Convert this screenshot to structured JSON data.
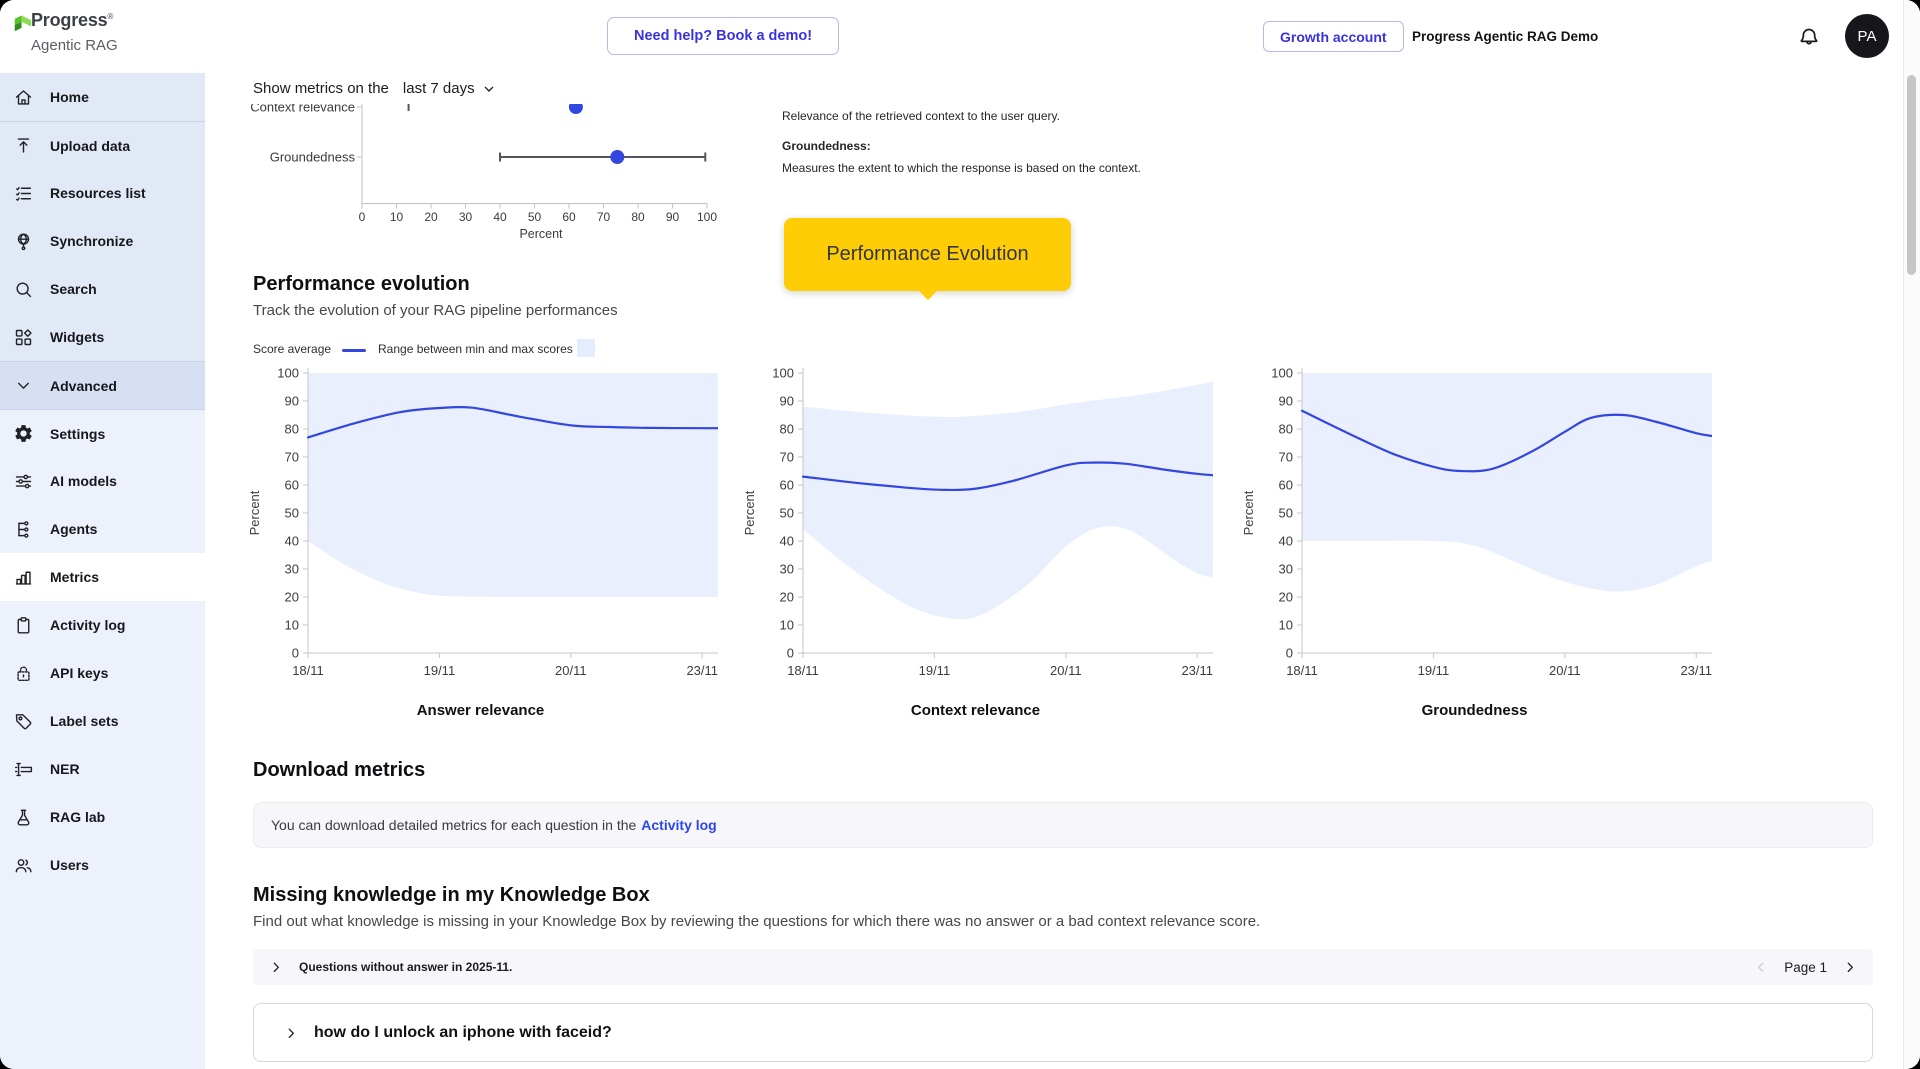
{
  "header": {
    "brand": "Progress",
    "brand_mark": "®",
    "product": "Agentic RAG",
    "help_button": "Need help? Book a demo!",
    "account_button": "Growth account",
    "account_label": "Progress Agentic RAG Demo",
    "avatar_initials": "PA"
  },
  "sidebar": {
    "items": [
      {
        "label": "Home",
        "icon": "home-icon",
        "group": "top"
      },
      {
        "label": "Upload data",
        "icon": "upload-icon",
        "group": "top",
        "divider_top": true
      },
      {
        "label": "Resources list",
        "icon": "list-icon",
        "group": "top"
      },
      {
        "label": "Synchronize",
        "icon": "globe-icon",
        "group": "top"
      },
      {
        "label": "Search",
        "icon": "search-icon",
        "group": "top"
      },
      {
        "label": "Widgets",
        "icon": "widgets-icon",
        "group": "top"
      },
      {
        "label": "Advanced",
        "icon": "chevron-down-icon",
        "group": "advanced",
        "divider_top": true
      },
      {
        "label": "Settings",
        "icon": "gear-icon",
        "group": "sub",
        "divider_top": true
      },
      {
        "label": "AI models",
        "icon": "sliders-icon",
        "group": "sub"
      },
      {
        "label": "Agents",
        "icon": "agents-icon",
        "group": "sub"
      },
      {
        "label": "Metrics",
        "icon": "metrics-icon",
        "group": "sub",
        "selected": true
      },
      {
        "label": "Activity log",
        "icon": "clipboard-icon",
        "group": "sub"
      },
      {
        "label": "API keys",
        "icon": "lock-dotted-icon",
        "group": "sub"
      },
      {
        "label": "Label sets",
        "icon": "tag-icon",
        "group": "sub"
      },
      {
        "label": "NER",
        "icon": "ner-icon",
        "group": "sub"
      },
      {
        "label": "RAG lab",
        "icon": "flask-icon",
        "group": "sub"
      },
      {
        "label": "Users",
        "icon": "users-icon",
        "group": "sub"
      }
    ]
  },
  "controls": {
    "prefix": "Show metrics on the",
    "range": "last 7 days"
  },
  "descriptions": {
    "context_text": "Relevance of the retrieved context to the user query.",
    "groundedness_label": "Groundedness:",
    "groundedness_text": "Measures the extent to which the response is based on the context."
  },
  "tooltip": {
    "text": "Performance Evolution"
  },
  "performance": {
    "title": "Performance evolution",
    "subtitle": "Track the evolution of your RAG pipeline performances",
    "legend": {
      "avg": "Score average",
      "range": "Range between min and max scores"
    }
  },
  "chart_data": [
    {
      "type": "scatter",
      "name": "metrics-overview-dot-plot",
      "xlabel": "Percent",
      "xlim": [
        0,
        100
      ],
      "x_ticks": [
        0,
        10,
        20,
        30,
        40,
        50,
        60,
        70,
        80,
        90,
        100
      ],
      "rows": [
        {
          "label": "Context relevance",
          "average": 62,
          "min": 13.5
        },
        {
          "label": "Groundedness",
          "average": 74,
          "min": 40,
          "max": 99.5
        }
      ]
    },
    {
      "type": "area",
      "title": "Answer relevance",
      "ylabel": "Percent",
      "ylim": [
        0,
        100
      ],
      "x_tick_labels": [
        "18/11",
        "19/11",
        "20/11",
        "23/11"
      ],
      "x_tick_pos": [
        0,
        1,
        2,
        3
      ],
      "x_max": 3.12,
      "average": [
        [
          0,
          77
        ],
        [
          0.35,
          82
        ],
        [
          0.7,
          86
        ],
        [
          1,
          87.5
        ],
        [
          1.25,
          87.6
        ],
        [
          1.6,
          84.5
        ],
        [
          2,
          81.3
        ],
        [
          2.3,
          80.7
        ],
        [
          2.6,
          80.4
        ],
        [
          3,
          80.3
        ],
        [
          3.12,
          80.3
        ]
      ],
      "max": [
        [
          0,
          100
        ],
        [
          3.12,
          100
        ]
      ],
      "min": [
        [
          0,
          40
        ],
        [
          0.3,
          31
        ],
        [
          0.6,
          24.5
        ],
        [
          0.9,
          21
        ],
        [
          1.15,
          20.2
        ],
        [
          1.5,
          20
        ],
        [
          2,
          20
        ],
        [
          2.5,
          20
        ],
        [
          3,
          20
        ],
        [
          3.12,
          20
        ]
      ]
    },
    {
      "type": "area",
      "title": "Context relevance",
      "ylabel": "Percent",
      "ylim": [
        0,
        100
      ],
      "x_tick_labels": [
        "18/11",
        "19/11",
        "20/11",
        "23/11"
      ],
      "x_tick_pos": [
        0,
        1,
        2,
        3
      ],
      "x_max": 3.12,
      "average": [
        [
          0,
          63
        ],
        [
          0.4,
          60.8
        ],
        [
          0.8,
          59
        ],
        [
          1.05,
          58.3
        ],
        [
          1.3,
          58.6
        ],
        [
          1.6,
          61.5
        ],
        [
          2,
          67
        ],
        [
          2.2,
          68
        ],
        [
          2.45,
          67.6
        ],
        [
          2.75,
          65.5
        ],
        [
          3,
          64
        ],
        [
          3.12,
          63.5
        ]
      ],
      "max": [
        [
          0,
          88
        ],
        [
          0.5,
          85.8
        ],
        [
          1,
          84.4
        ],
        [
          1.3,
          84.6
        ],
        [
          1.7,
          86.5
        ],
        [
          2.1,
          89.5
        ],
        [
          2.6,
          92.5
        ],
        [
          3,
          95.8
        ],
        [
          3.12,
          97
        ]
      ],
      "min": [
        [
          0,
          44
        ],
        [
          0.4,
          29
        ],
        [
          0.8,
          17
        ],
        [
          1.1,
          12.5
        ],
        [
          1.35,
          13.5
        ],
        [
          1.7,
          24
        ],
        [
          2,
          38
        ],
        [
          2.25,
          44.8
        ],
        [
          2.5,
          43.5
        ],
        [
          2.8,
          34
        ],
        [
          3,
          28.5
        ],
        [
          3.12,
          27
        ]
      ]
    },
    {
      "type": "area",
      "title": "Groundedness",
      "ylabel": "Percent",
      "ylim": [
        0,
        100
      ],
      "x_tick_labels": [
        "18/11",
        "19/11",
        "20/11",
        "23/11"
      ],
      "x_tick_pos": [
        0,
        1,
        2,
        3
      ],
      "x_max": 3.12,
      "average": [
        [
          0,
          86.5
        ],
        [
          0.35,
          78.5
        ],
        [
          0.7,
          71
        ],
        [
          1,
          66.5
        ],
        [
          1.2,
          65
        ],
        [
          1.45,
          65.8
        ],
        [
          1.75,
          72
        ],
        [
          2,
          79
        ],
        [
          2.2,
          84
        ],
        [
          2.45,
          85
        ],
        [
          2.7,
          82.5
        ],
        [
          3,
          78.5
        ],
        [
          3.12,
          77.5
        ]
      ],
      "max": [
        [
          0,
          100
        ],
        [
          3.12,
          100
        ]
      ],
      "min": [
        [
          0,
          40
        ],
        [
          0.5,
          40
        ],
        [
          1,
          40
        ],
        [
          1.3,
          38.5
        ],
        [
          1.6,
          33
        ],
        [
          1.9,
          27
        ],
        [
          2.2,
          23
        ],
        [
          2.45,
          22
        ],
        [
          2.7,
          24.5
        ],
        [
          3,
          31
        ],
        [
          3.12,
          33
        ]
      ]
    }
  ],
  "download": {
    "title": "Download metrics",
    "text": "You can download detailed metrics for each question in the",
    "link": "Activity log"
  },
  "missing": {
    "title": "Missing knowledge in my Knowledge Box",
    "subtitle": "Find out what knowledge is missing in your Knowledge Box by reviewing the questions for which there was no answer or a bad context relevance score.",
    "accordion_label": "Questions without answer in 2025-11.",
    "pagination": "Page 1",
    "question": "how do I unlock an iphone with faceid?"
  },
  "colors": {
    "accent_purple_blue": "#3a32dd",
    "line_blue": "#3246e0",
    "band_blue": "#e9effc",
    "tooltip_yellow": "#ffcd05",
    "link_blue": "#2b46ee",
    "sidebar_bg": "#e2e9f6"
  }
}
